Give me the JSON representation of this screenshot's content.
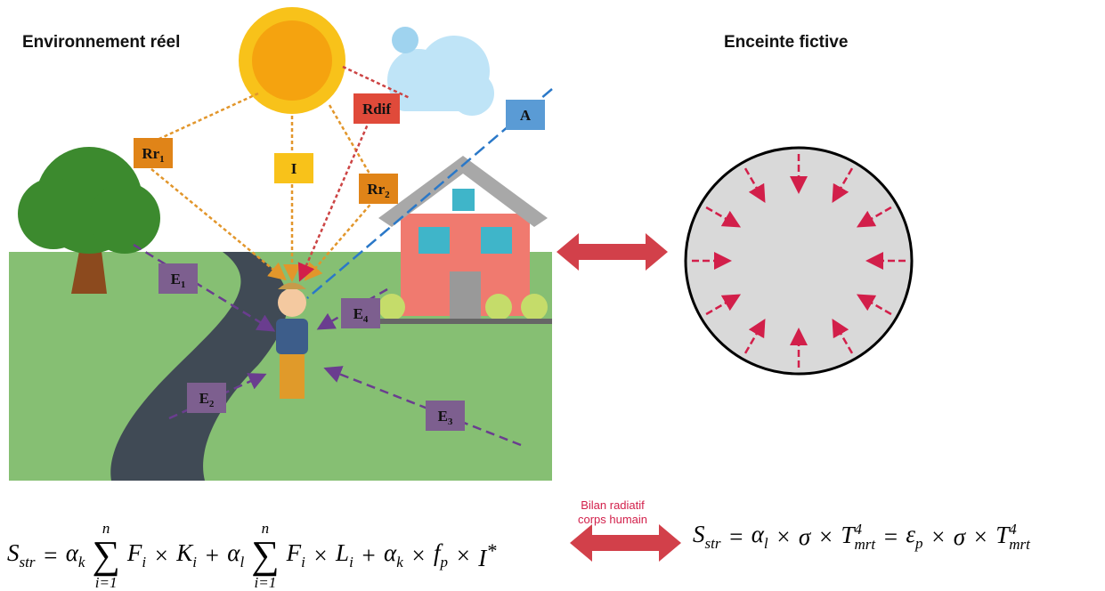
{
  "header": {
    "left_title": "Environnement réel",
    "right_title": "Enceinte fictive"
  },
  "labels": [
    {
      "text": "Rr",
      "sub": "1"
    },
    {
      "text": "I"
    },
    {
      "text": "Rdif"
    },
    {
      "text": "Rr",
      "sub": "2"
    },
    {
      "text": "A"
    },
    {
      "text": "E",
      "sub": "1"
    },
    {
      "text": "E",
      "sub": "4"
    },
    {
      "text": "E",
      "sub": "2"
    },
    {
      "text": "E",
      "sub": "3"
    }
  ],
  "balance_label": [
    "Bilan radiatif",
    "corps humain"
  ],
  "formula_left": [
    {
      "t": "S",
      "sub": "str"
    },
    {
      "t": "="
    },
    {
      "t": "α",
      "sub": "k"
    },
    {
      "sum": "∑",
      "from": "i=1",
      "to": "n"
    },
    {
      "t": "F",
      "sub": "i"
    },
    {
      "t": "×"
    },
    {
      "t": "K",
      "sub": "i"
    },
    {
      "t": "+"
    },
    {
      "t": "α",
      "sub": "l"
    },
    {
      "sum": "∑",
      "from": "i=1",
      "to": "n"
    },
    {
      "t": "F",
      "sub": "i"
    },
    {
      "t": "×"
    },
    {
      "t": "L",
      "sub": "i"
    },
    {
      "t": "+"
    },
    {
      "t": "α",
      "sub": "k"
    },
    {
      "t": "×"
    },
    {
      "t": "f",
      "sub": "p"
    },
    {
      "t": "×"
    },
    {
      "t": "I",
      "sup": "*"
    }
  ],
  "formula_right": [
    {
      "t": "S",
      "sub": "str"
    },
    {
      "t": "="
    },
    {
      "t": "α",
      "sub": "l"
    },
    {
      "t": "×"
    },
    {
      "t": "σ"
    },
    {
      "t": "×"
    },
    {
      "t": "T",
      "sub": "mrt",
      "sup": "4"
    },
    {
      "t": "="
    },
    {
      "t": "ε",
      "sub": "p"
    },
    {
      "t": "×"
    },
    {
      "t": "σ"
    },
    {
      "t": "×"
    },
    {
      "t": "T",
      "sub": "mrt",
      "sup": "4"
    }
  ]
}
